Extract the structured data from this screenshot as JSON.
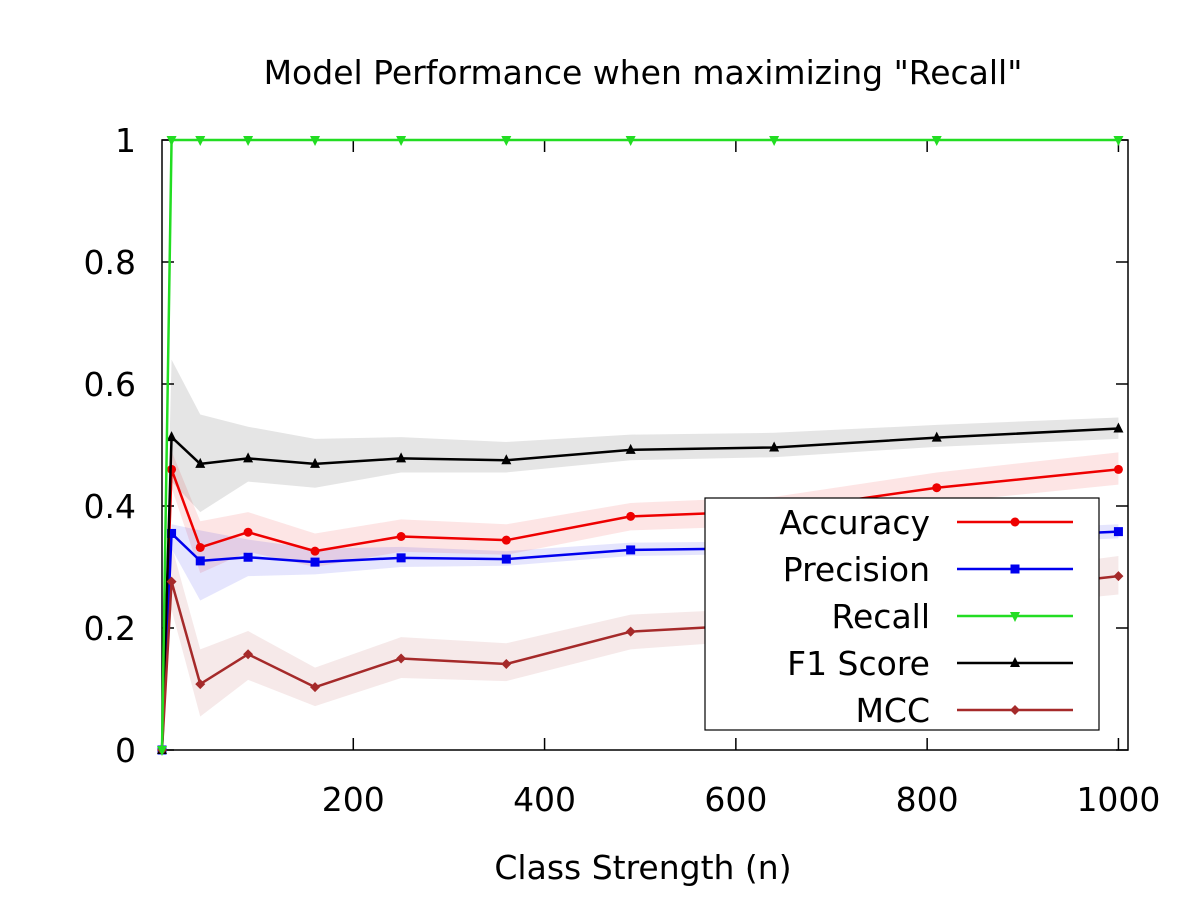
{
  "chart_data": {
    "type": "line",
    "title": "Model Performance when maximizing \"Recall\"",
    "xlabel": "Class Strength (n)",
    "ylabel": "",
    "xlim": [
      0,
      1010
    ],
    "ylim": [
      0,
      1
    ],
    "x_ticks": [
      200,
      400,
      600,
      800,
      1000
    ],
    "x_tick_labels": [
      "200",
      "400",
      "600",
      "800",
      "1000"
    ],
    "y_ticks": [
      0,
      0.2,
      0.4,
      0.6,
      0.8,
      1
    ],
    "y_tick_labels": [
      "0",
      "0.2",
      "0.4",
      "0.6",
      "0.8",
      "1"
    ],
    "grid": false,
    "legend_position": "bottom-right",
    "x": [
      0,
      10,
      40,
      90,
      160,
      250,
      360,
      490,
      640,
      810,
      1000
    ],
    "series": [
      {
        "name": "Accuracy",
        "color": "#ee0000",
        "marker": "circle",
        "values": [
          0,
          0.46,
          0.332,
          0.357,
          0.326,
          0.35,
          0.344,
          0.383,
          0.392,
          0.43,
          0.46
        ],
        "band_low": [
          0,
          0.43,
          0.29,
          0.325,
          0.3,
          0.325,
          0.32,
          0.36,
          0.368,
          0.405,
          0.435
        ],
        "band_high": [
          0,
          0.49,
          0.375,
          0.39,
          0.355,
          0.378,
          0.37,
          0.405,
          0.415,
          0.455,
          0.488
        ]
      },
      {
        "name": "Precision",
        "color": "#0000ee",
        "marker": "square",
        "values": [
          0,
          0.355,
          0.31,
          0.316,
          0.308,
          0.315,
          0.313,
          0.328,
          0.331,
          0.345,
          0.358
        ],
        "band_low": [
          0,
          0.33,
          0.245,
          0.285,
          0.288,
          0.3,
          0.302,
          0.318,
          0.322,
          0.335,
          0.347
        ],
        "band_high": [
          0,
          0.37,
          0.36,
          0.345,
          0.33,
          0.333,
          0.326,
          0.34,
          0.342,
          0.356,
          0.37
        ]
      },
      {
        "name": "Recall",
        "color": "#22dd22",
        "marker": "triangle-down",
        "values": [
          0,
          1,
          1,
          1,
          1,
          1,
          1,
          1,
          1,
          1,
          1
        ]
      },
      {
        "name": "F1 Score",
        "color": "#000000",
        "marker": "triangle-up",
        "values": [
          0,
          0.513,
          0.469,
          0.478,
          0.469,
          0.478,
          0.475,
          0.492,
          0.496,
          0.512,
          0.527
        ],
        "band_low": [
          0,
          0.44,
          0.39,
          0.44,
          0.43,
          0.455,
          0.455,
          0.475,
          0.48,
          0.497,
          0.51
        ],
        "band_high": [
          0,
          0.64,
          0.55,
          0.53,
          0.51,
          0.513,
          0.505,
          0.517,
          0.52,
          0.533,
          0.545
        ]
      },
      {
        "name": "MCC",
        "color": "#a52a2a",
        "marker": "diamond",
        "values": [
          0,
          0.276,
          0.108,
          0.157,
          0.103,
          0.15,
          0.141,
          0.194,
          0.207,
          0.252,
          0.285
        ],
        "band_low": [
          0,
          0.23,
          0.055,
          0.115,
          0.072,
          0.118,
          0.113,
          0.165,
          0.182,
          0.225,
          0.255
        ],
        "band_high": [
          0,
          0.335,
          0.165,
          0.195,
          0.135,
          0.185,
          0.175,
          0.222,
          0.233,
          0.278,
          0.318
        ]
      }
    ]
  }
}
